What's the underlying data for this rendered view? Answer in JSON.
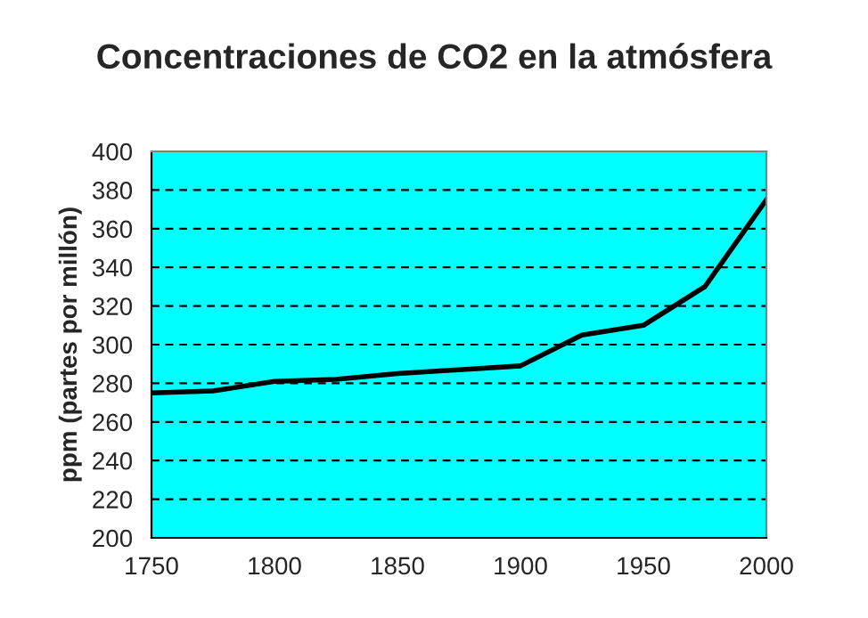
{
  "chart_data": {
    "type": "line",
    "title": "Concentraciones de CO2 en la atmósfera",
    "ylabel": "ppm (partes por millón)",
    "x": [
      1750,
      1775,
      1800,
      1825,
      1850,
      1875,
      1900,
      1925,
      1950,
      1975,
      2000
    ],
    "series": [
      {
        "color": "#000000",
        "values": [
          275,
          276,
          281,
          282,
          285,
          287,
          289,
          305,
          310,
          330,
          375
        ]
      }
    ],
    "xlim": [
      1750,
      2000
    ],
    "xticks": [
      1750,
      1800,
      1850,
      1900,
      1950,
      2000
    ],
    "ylim": [
      200,
      400
    ],
    "yticks": [
      200,
      220,
      240,
      260,
      280,
      300,
      320,
      340,
      360,
      380,
      400
    ],
    "grid": "y",
    "line_style": "solid",
    "legend": false
  }
}
